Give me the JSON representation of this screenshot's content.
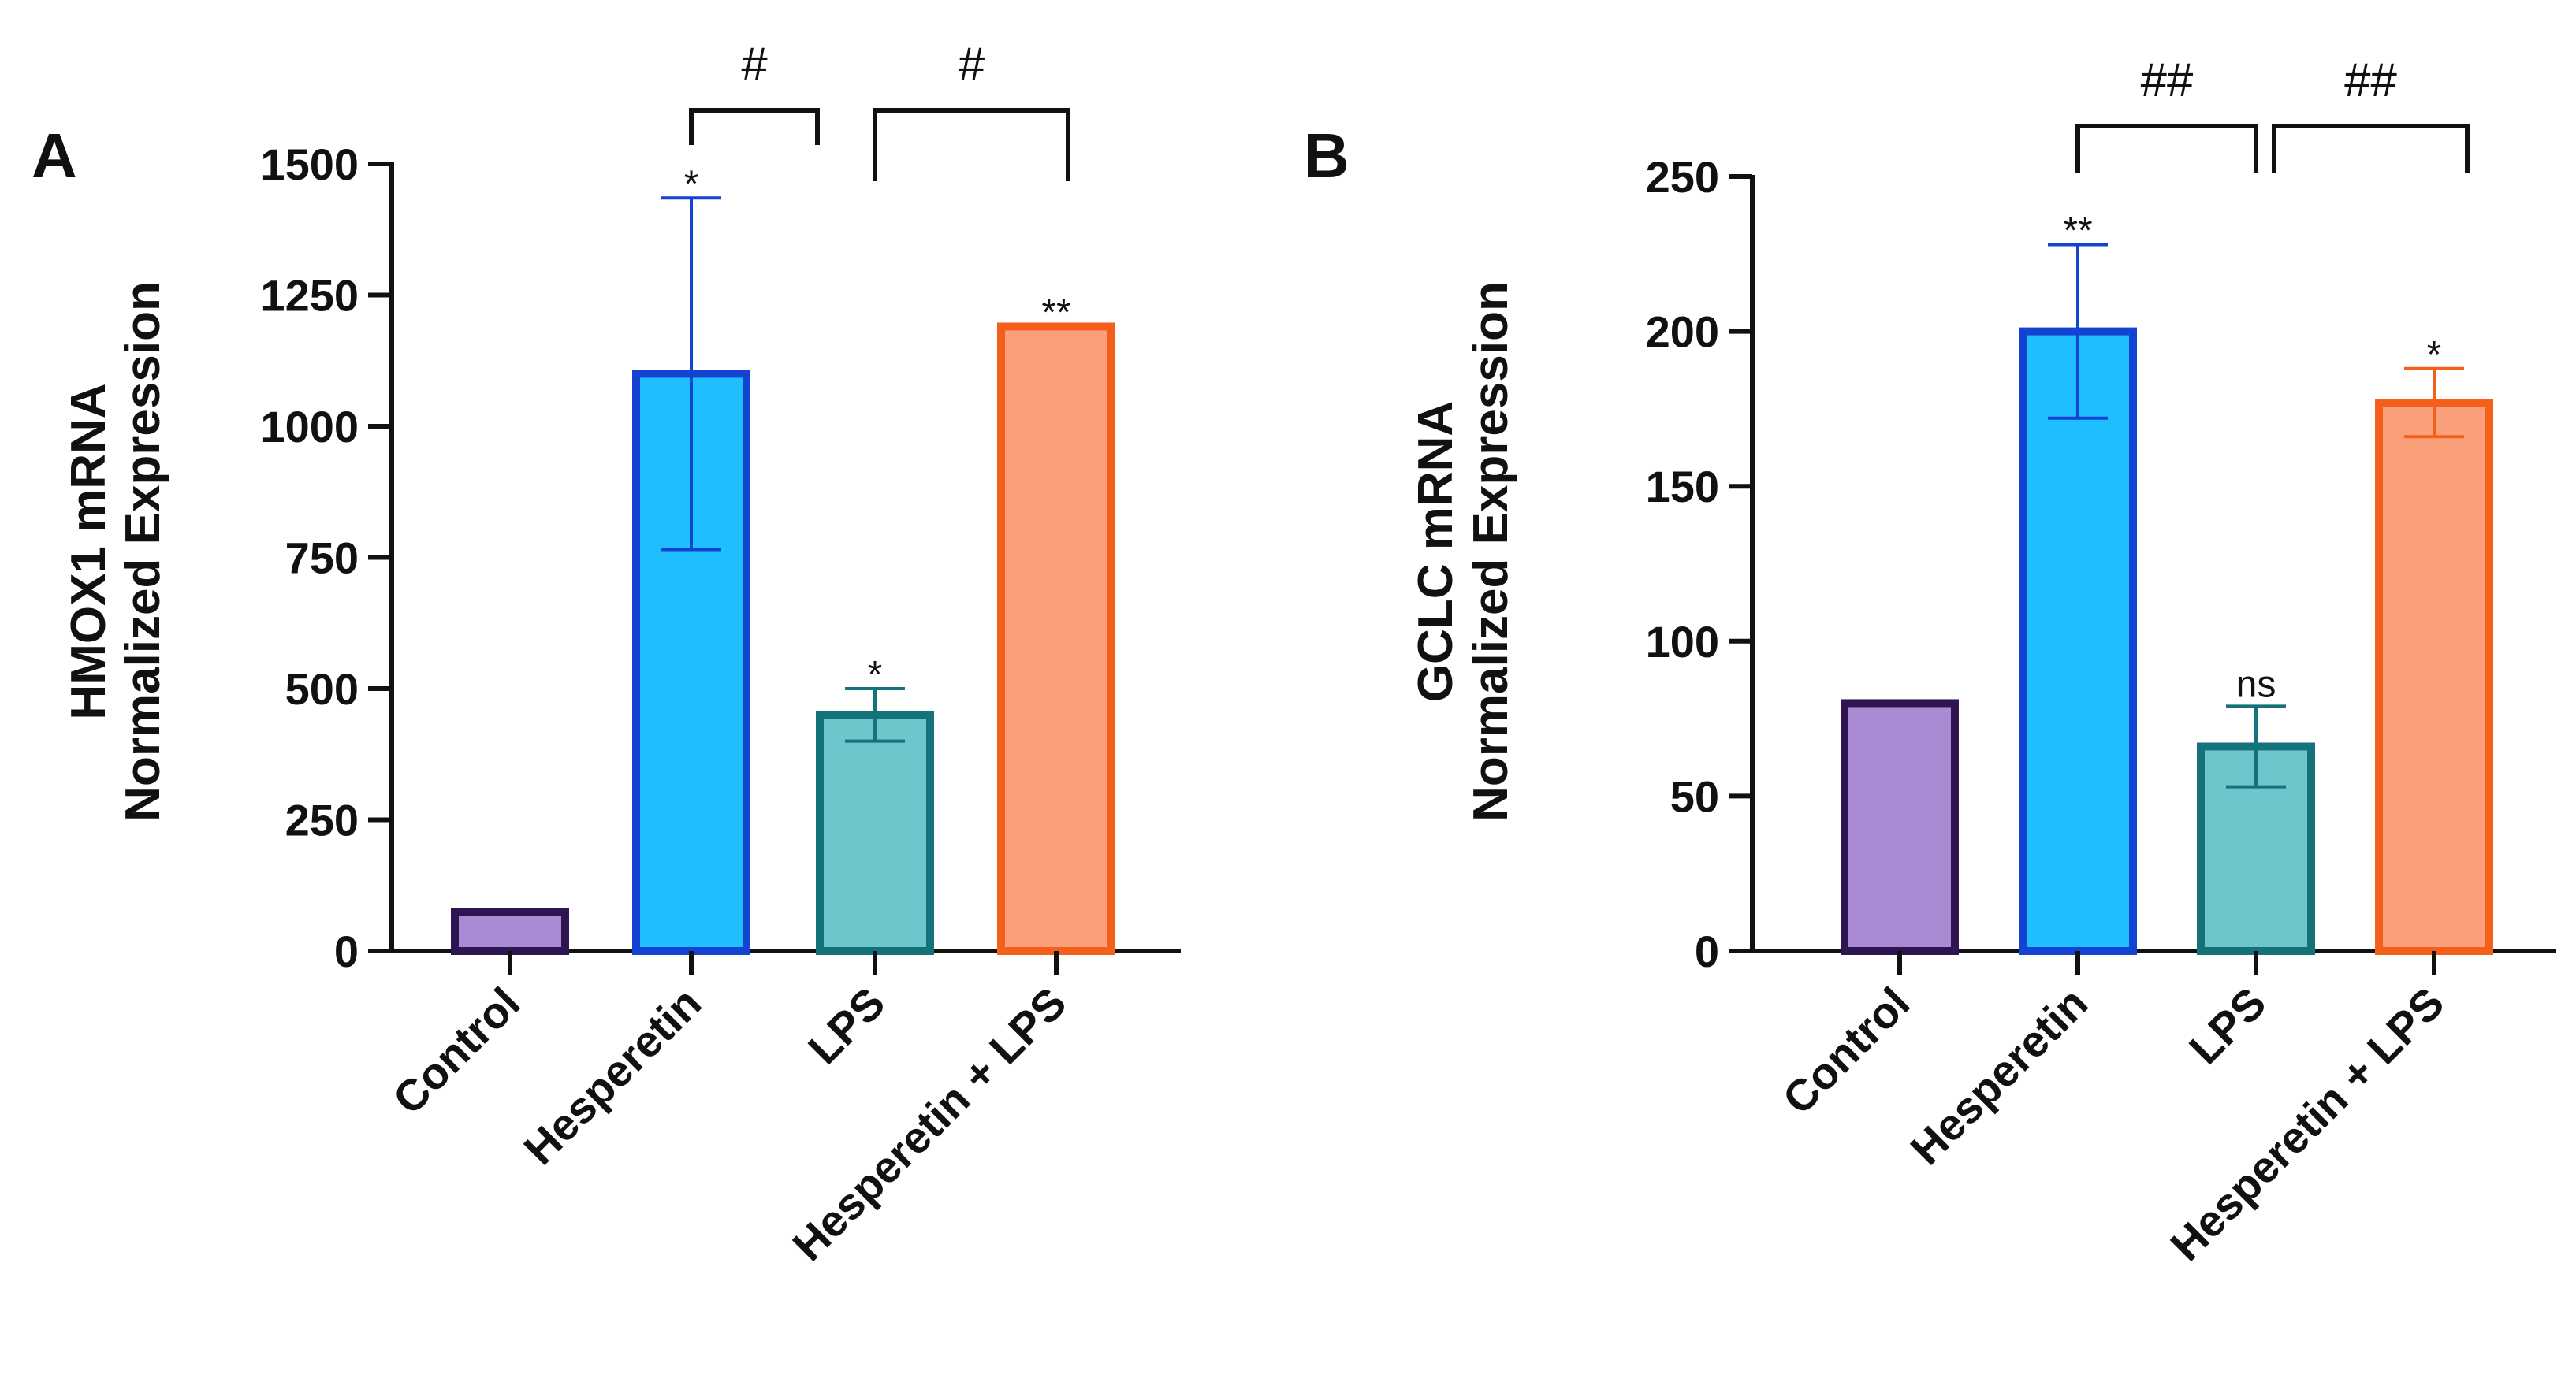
{
  "chart_data": [
    {
      "type": "bar",
      "panel": "A",
      "ylabel": [
        "HMOX1 mRNA",
        "Normalized Expression"
      ],
      "xlabel": "",
      "categories": [
        "Control",
        "Hesperetin",
        "LPS",
        "Hesperetin + LPS"
      ],
      "values": [
        75,
        1100,
        450,
        1190
      ],
      "errors": [
        0,
        335,
        50,
        0
      ],
      "significance": [
        "",
        "*",
        "*",
        "**"
      ],
      "ylim": [
        0,
        1500
      ],
      "yticks": [
        "0",
        "250",
        "500",
        "750",
        "1000",
        "1250",
        "1500"
      ],
      "fill_colors": [
        "#a98bd3",
        "#1fbfff",
        "#6ec6cc",
        "#f9a07b"
      ],
      "edge_colors": [
        "#2e1450",
        "#1543d1",
        "#13727a",
        "#f4601c"
      ],
      "brackets": [
        {
          "from": 1,
          "to": 2,
          "label": "#"
        },
        {
          "from": 2,
          "to": 3,
          "label": "#"
        }
      ]
    },
    {
      "type": "bar",
      "panel": "B",
      "ylabel": [
        "GCLC mRNA",
        "Normalized Expression"
      ],
      "xlabel": "",
      "categories": [
        "Control",
        "Hesperetin",
        "LPS",
        "Hesperetin + LPS"
      ],
      "values": [
        80,
        200,
        66,
        177
      ],
      "errors": [
        0,
        28,
        13,
        11
      ],
      "significance": [
        "",
        "**",
        "ns",
        "*"
      ],
      "ylim": [
        0,
        250
      ],
      "yticks": [
        "0",
        "50",
        "100",
        "150",
        "200",
        "250"
      ],
      "fill_colors": [
        "#a98bd3",
        "#1fbfff",
        "#6ec6cc",
        "#f9a07b"
      ],
      "edge_colors": [
        "#2e1450",
        "#1543d1",
        "#13727a",
        "#f4601c"
      ],
      "brackets": [
        {
          "from": 1,
          "to": 2,
          "label": "##"
        },
        {
          "from": 2,
          "to": 3,
          "label": "##"
        }
      ]
    }
  ]
}
